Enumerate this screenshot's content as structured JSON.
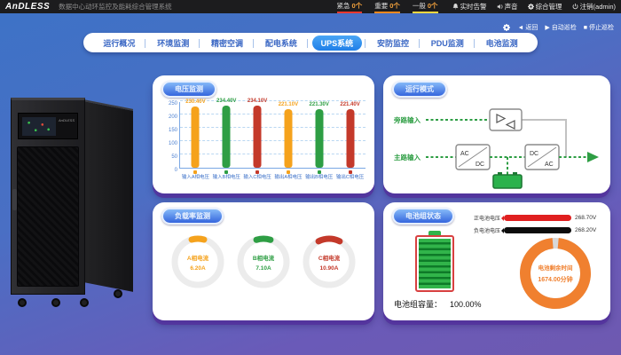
{
  "topbar": {
    "logo": "AnDLESS",
    "title": "数据中心动环监控及能耗综合管理系统",
    "alarms": [
      {
        "label": "紧急",
        "count": "0个",
        "color": "#e8392f"
      },
      {
        "label": "重要",
        "count": "0个",
        "color": "#f5891f"
      },
      {
        "label": "一般",
        "count": "0个",
        "color": "#f7d842"
      }
    ],
    "menu": [
      {
        "label": "实时告警",
        "icon": "bell-icon"
      },
      {
        "label": "声音",
        "icon": "speaker-icon"
      },
      {
        "label": "综合管理",
        "icon": "gear-icon"
      },
      {
        "label": "注销(admin)",
        "icon": "logout-icon"
      }
    ]
  },
  "toolbar": {
    "back": "返回",
    "auto_patrol": "自动巡检",
    "stop_patrol": "停止巡检"
  },
  "nav": {
    "tabs": [
      {
        "label": "运行概况",
        "active": false
      },
      {
        "label": "环境监测",
        "active": false
      },
      {
        "label": "精密空调",
        "active": false
      },
      {
        "label": "配电系统",
        "active": false
      },
      {
        "label": "UPS系统",
        "active": true
      },
      {
        "label": "安防监控",
        "active": false
      },
      {
        "label": "PDU监测",
        "active": false
      },
      {
        "label": "电池监测",
        "active": false
      }
    ]
  },
  "cards": {
    "voltage": {
      "title": "电压监测"
    },
    "mode": {
      "title": "运行模式",
      "bypass_label": "旁路输入",
      "main_label": "主路输入",
      "ac": "AC",
      "dc": "DC"
    },
    "load": {
      "title": "负载率监测"
    },
    "battery": {
      "title": "电池组状态",
      "pos_label": "正电池电压",
      "pos_value": "268.70V",
      "neg_label": "负电池电压",
      "neg_value": "268.20V",
      "capacity_label": "电池组容量：",
      "capacity_value": "100.00%",
      "remain_label": "电池剩余时间",
      "remain_value": "1674.00分钟"
    }
  },
  "chart_data": [
    {
      "type": "bar",
      "title": "电压监测",
      "categories": [
        "输入A相电压",
        "输入B相电压",
        "输入C相电压",
        "输出A相电压",
        "输出B相电压",
        "输出C相电压"
      ],
      "values": [
        230.4,
        234.4,
        234.1,
        221.1,
        221.3,
        221.4
      ],
      "value_labels": [
        "230.40V",
        "234.40V",
        "234.10V",
        "221.10V",
        "221.30V",
        "221.40V"
      ],
      "colors": [
        "#f5a21c",
        "#2e9e44",
        "#c4392a",
        "#f5a21c",
        "#2e9e44",
        "#c4392a"
      ],
      "xlabel": "",
      "ylabel": "",
      "ylim": [
        0,
        250
      ],
      "yticks": [
        0,
        50,
        100,
        150,
        200,
        250
      ],
      "grid": "dashed horizontal"
    },
    {
      "type": "gauge",
      "title": "负载率监测",
      "gauges": [
        {
          "label": "A相电流",
          "value": 6.2,
          "display": "6.20A",
          "color": "#f5a21c"
        },
        {
          "label": "B相电流",
          "value": 7.1,
          "display": "7.10A",
          "color": "#2e9e44"
        },
        {
          "label": "C相电流",
          "value": 10.9,
          "display": "10.90A",
          "color": "#c4392a"
        }
      ]
    },
    {
      "type": "gauge",
      "title": "电池剩余时间",
      "value": 1674.0,
      "display": "1674.00分钟",
      "percent_full": 97,
      "color": "#f0802f"
    }
  ]
}
